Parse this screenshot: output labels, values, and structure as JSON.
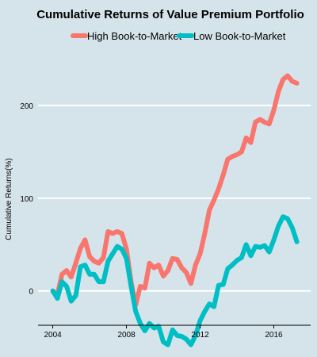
{
  "chart_data": {
    "type": "line",
    "title": "Cumulative Returns of Value Premium Portfolio",
    "xlabel": "",
    "ylabel": "Cumulative Returns(%)",
    "xlim": [
      2003.2,
      2018.0
    ],
    "ylim": [
      -37,
      235
    ],
    "x_ticks": [
      2004,
      2008,
      2012,
      2016
    ],
    "x_tick_labels": [
      "2004",
      "2008",
      "2012",
      "2016"
    ],
    "y_ticks": [
      0,
      100,
      200
    ],
    "y_tick_labels": [
      "0",
      "100",
      "200"
    ],
    "grid": true,
    "legend_position": "top",
    "series": [
      {
        "name": "High Book-to-Market",
        "color": "#f8766d",
        "x": [
          2004.0,
          2004.25,
          2004.5,
          2004.75,
          2005.0,
          2005.25,
          2005.5,
          2005.75,
          2006.0,
          2006.25,
          2006.5,
          2006.75,
          2007.0,
          2007.25,
          2007.5,
          2007.75,
          2008.0,
          2008.25,
          2008.5,
          2008.75,
          2009.0,
          2009.25,
          2009.5,
          2009.75,
          2010.0,
          2010.25,
          2010.5,
          2010.75,
          2011.0,
          2011.25,
          2011.5,
          2011.75,
          2012.0,
          2012.25,
          2012.5,
          2012.75,
          2013.0,
          2013.25,
          2013.5,
          2013.75,
          2014.0,
          2014.25,
          2014.5,
          2014.75,
          2015.0,
          2015.25,
          2015.5,
          2015.75,
          2016.0,
          2016.25,
          2016.5,
          2016.75,
          2017.0,
          2017.25
        ],
        "values": [
          0,
          -4,
          18,
          22,
          15,
          30,
          46,
          55,
          37,
          32,
          30,
          36,
          64,
          62,
          64,
          62,
          45,
          10,
          -15,
          5,
          3,
          30,
          25,
          28,
          16,
          22,
          35,
          34,
          25,
          20,
          8,
          28,
          40,
          62,
          87,
          98,
          110,
          125,
          142,
          145,
          147,
          150,
          165,
          160,
          182,
          185,
          182,
          180,
          195,
          215,
          228,
          232,
          226,
          224
        ]
      },
      {
        "name": "Low Book-to-Market",
        "color": "#00bfc4",
        "x": [
          2004.0,
          2004.25,
          2004.5,
          2004.75,
          2005.0,
          2005.25,
          2005.5,
          2005.75,
          2006.0,
          2006.25,
          2006.5,
          2006.75,
          2007.0,
          2007.25,
          2007.5,
          2007.75,
          2008.0,
          2008.25,
          2008.5,
          2008.75,
          2009.0,
          2009.25,
          2009.5,
          2009.75,
          2010.0,
          2010.25,
          2010.5,
          2010.75,
          2011.0,
          2011.25,
          2011.5,
          2011.75,
          2012.0,
          2012.25,
          2012.5,
          2012.75,
          2013.0,
          2013.25,
          2013.5,
          2013.75,
          2014.0,
          2014.25,
          2014.5,
          2014.75,
          2015.0,
          2015.25,
          2015.5,
          2015.75,
          2016.0,
          2016.25,
          2016.5,
          2016.75,
          2017.0,
          2017.25
        ],
        "values": [
          0,
          -8,
          10,
          5,
          -11,
          -5,
          26,
          28,
          18,
          18,
          10,
          10,
          32,
          40,
          48,
          45,
          35,
          5,
          -22,
          -35,
          -43,
          -35,
          -40,
          -38,
          -55,
          -58,
          -42,
          -48,
          -49,
          -52,
          -58,
          -48,
          -32,
          -22,
          -14,
          -17,
          6,
          7,
          24,
          28,
          33,
          36,
          50,
          38,
          48,
          47,
          49,
          42,
          55,
          70,
          80,
          78,
          68,
          53
        ]
      }
    ]
  }
}
